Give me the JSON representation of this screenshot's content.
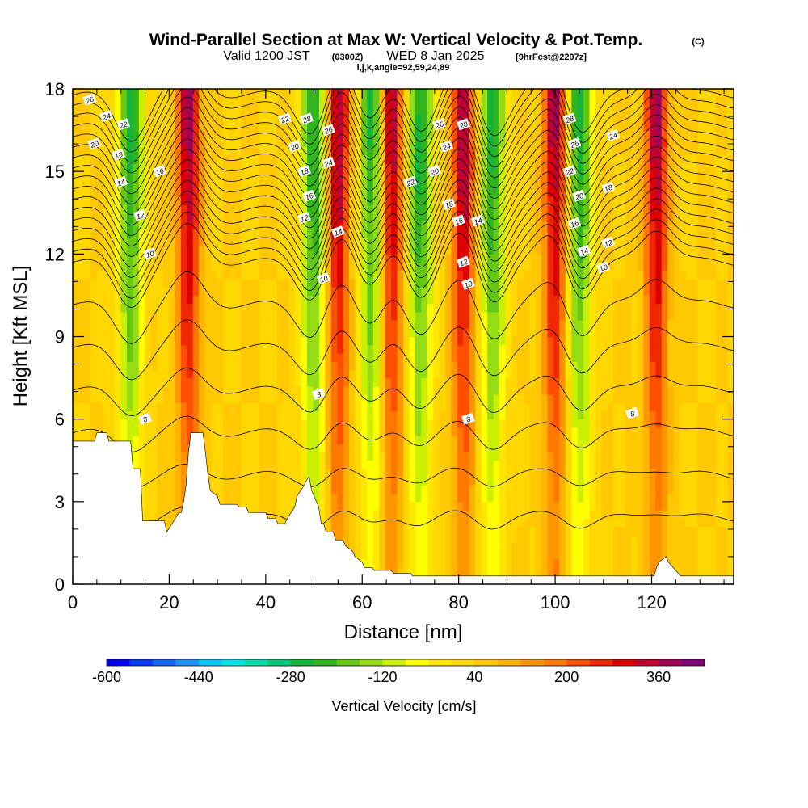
{
  "title": {
    "main": "Wind-Parallel Section at Max W: Vertical Velocity & Pot.Temp.",
    "unit_tag": "(C)",
    "valid_prefix": "Valid 1200 JST",
    "valid_utc": "(0300Z)",
    "valid_date": "WED 8 Jan 2025",
    "forecast": "[9hrFcst@2207z]",
    "section_params": "i,j,k,angle=92,59,24,89"
  },
  "chart_data": {
    "type": "heatmap",
    "xlabel": "Distance [nm]",
    "ylabel": "Height [Kft MSL]",
    "xlim": [
      0,
      137
    ],
    "ylim": [
      0,
      18
    ],
    "x_ticks": [
      0,
      20,
      40,
      60,
      80,
      100,
      120
    ],
    "y_ticks": [
      0,
      3,
      6,
      9,
      12,
      15,
      18
    ],
    "field": {
      "name": "Vertical Velocity",
      "units": "cm/s",
      "levels": [
        -600,
        -560,
        -520,
        -480,
        -440,
        -400,
        -360,
        -320,
        -280,
        -240,
        -200,
        -160,
        -120,
        -80,
        -40,
        0,
        40,
        80,
        120,
        160,
        200,
        240,
        280,
        320,
        360,
        400,
        440
      ],
      "colors": [
        "#0000ff",
        "#0a3cff",
        "#1466ff",
        "#1e90ff",
        "#00c8ff",
        "#00e6e6",
        "#00dcaa",
        "#00c878",
        "#14b43c",
        "#32b41e",
        "#64c814",
        "#96dc14",
        "#c8f000",
        "#ffff00",
        "#ffe600",
        "#ffd700",
        "#ffc800",
        "#ffb400",
        "#ff9600",
        "#ff7800",
        "#ff5000",
        "#f02800",
        "#dc0000",
        "#be0032",
        "#a0005a",
        "#820078"
      ],
      "colorbar_tick_labels": [
        "-600",
        "-440",
        "-280",
        "-120",
        "40",
        "200",
        "360"
      ],
      "colorbar_title": "Vertical Velocity [cm/s]",
      "updraft_bands_nm": [
        24,
        55,
        66,
        81,
        100,
        121
      ],
      "downdraft_bands_nm": [
        12,
        50,
        62,
        72,
        87,
        105
      ]
    },
    "isentropes": {
      "name": "Pot.Temp.",
      "units": "C",
      "contour_labels": [
        {
          "value": "26",
          "x": 3.5,
          "y": 17.6
        },
        {
          "value": "24",
          "x": 7,
          "y": 17.0
        },
        {
          "value": "22",
          "x": 10.5,
          "y": 16.7
        },
        {
          "value": "20",
          "x": 4.5,
          "y": 16.0
        },
        {
          "value": "18",
          "x": 9.5,
          "y": 15.6
        },
        {
          "value": "16",
          "x": 18,
          "y": 15.0
        },
        {
          "value": "14",
          "x": 10,
          "y": 14.6
        },
        {
          "value": "12",
          "x": 14,
          "y": 13.4
        },
        {
          "value": "10",
          "x": 16,
          "y": 12.0
        },
        {
          "value": "22",
          "x": 44,
          "y": 16.9
        },
        {
          "value": "28",
          "x": 48.5,
          "y": 16.9
        },
        {
          "value": "26",
          "x": 53,
          "y": 16.5
        },
        {
          "value": "20",
          "x": 46,
          "y": 15.9
        },
        {
          "value": "24",
          "x": 53,
          "y": 15.3
        },
        {
          "value": "18",
          "x": 48,
          "y": 15.0
        },
        {
          "value": "16",
          "x": 49,
          "y": 14.1
        },
        {
          "value": "12",
          "x": 48,
          "y": 13.3
        },
        {
          "value": "14",
          "x": 55,
          "y": 12.8
        },
        {
          "value": "10",
          "x": 52,
          "y": 11.1
        },
        {
          "value": "26",
          "x": 76,
          "y": 16.7
        },
        {
          "value": "28",
          "x": 81,
          "y": 16.7
        },
        {
          "value": "24",
          "x": 77.5,
          "y": 15.9
        },
        {
          "value": "20",
          "x": 75,
          "y": 15.0
        },
        {
          "value": "22",
          "x": 70,
          "y": 14.6
        },
        {
          "value": "18",
          "x": 78,
          "y": 13.8
        },
        {
          "value": "16",
          "x": 80,
          "y": 13.2
        },
        {
          "value": "14",
          "x": 84,
          "y": 13.2
        },
        {
          "value": "12",
          "x": 81,
          "y": 11.7
        },
        {
          "value": "10",
          "x": 82,
          "y": 10.9
        },
        {
          "value": "28",
          "x": 103,
          "y": 16.9
        },
        {
          "value": "26",
          "x": 104,
          "y": 16.0
        },
        {
          "value": "24",
          "x": 112,
          "y": 16.3
        },
        {
          "value": "22",
          "x": 103,
          "y": 15.0
        },
        {
          "value": "20",
          "x": 105,
          "y": 14.1
        },
        {
          "value": "18",
          "x": 111,
          "y": 14.4
        },
        {
          "value": "16",
          "x": 104,
          "y": 13.1
        },
        {
          "value": "12",
          "x": 111,
          "y": 12.4
        },
        {
          "value": "14",
          "x": 106,
          "y": 12.1
        },
        {
          "value": "10",
          "x": 110,
          "y": 11.5
        },
        {
          "value": "8",
          "x": 15,
          "y": 6.0
        },
        {
          "value": "8",
          "x": 51,
          "y": 6.9
        },
        {
          "value": "8",
          "x": 82,
          "y": 6.0
        },
        {
          "value": "8",
          "x": 116,
          "y": 6.2
        }
      ]
    },
    "terrain_kft": {
      "x": [
        0,
        4.5,
        5,
        7,
        7.5,
        12,
        12.5,
        14,
        14.5,
        17,
        17.5,
        19,
        19.5,
        22,
        22.5,
        23,
        23.5,
        24,
        24.5,
        27,
        27.5,
        28,
        28.5,
        30,
        30.5,
        34,
        34.5,
        36,
        36.5,
        38,
        38.5,
        40,
        40.5,
        42,
        42.5,
        44,
        44.5,
        46,
        46.5,
        48,
        48.5,
        49,
        49.5,
        51,
        51.5,
        52,
        52.5,
        54,
        54.5,
        56,
        56.5,
        58,
        58.5,
        60,
        60.5,
        62,
        62.5,
        66,
        66.5,
        70,
        70.5,
        120,
        120.5,
        121,
        121.5,
        123,
        123.5,
        125,
        125.5,
        126,
        126.5,
        137
      ],
      "y": [
        5.2,
        5.2,
        5.5,
        5.5,
        5.2,
        5.2,
        4.2,
        4.2,
        2.3,
        2.3,
        2.3,
        2.3,
        1.9,
        2.6,
        2.6,
        3.0,
        3.6,
        4.8,
        5.5,
        5.5,
        4.8,
        4.0,
        3.4,
        3.2,
        2.9,
        2.9,
        2.8,
        2.8,
        2.6,
        2.6,
        2.6,
        2.6,
        2.4,
        2.4,
        2.2,
        2.2,
        2.4,
        2.8,
        3.2,
        3.6,
        3.8,
        3.9,
        3.4,
        2.8,
        2.2,
        2.2,
        1.9,
        1.9,
        1.6,
        1.6,
        1.4,
        1.2,
        1.0,
        0.8,
        0.6,
        0.6,
        0.5,
        0.5,
        0.4,
        0.4,
        0.3,
        0.3,
        0.3,
        0.6,
        0.8,
        1.0,
        0.8,
        0.5,
        0.4,
        0.3,
        0.3,
        0.3
      ]
    }
  }
}
